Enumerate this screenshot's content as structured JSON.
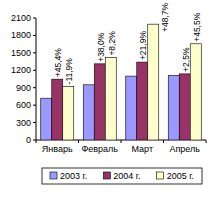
{
  "chart_data": {
    "type": "bar",
    "categories": [
      "Январь",
      "Февраль",
      "Март",
      "Апрель"
    ],
    "series": [
      {
        "name": "2003 г.",
        "color": "#9999ff",
        "values": [
          720,
          950,
          1100,
          1110
        ]
      },
      {
        "name": "2004 г.",
        "color": "#993366",
        "values": [
          1047,
          1311,
          1341,
          1138
        ],
        "annotations": [
          "+45,4%",
          "+38,0%",
          "+21,9%",
          "+2,5%"
        ]
      },
      {
        "name": "2005 г.",
        "color": "#ffffcc",
        "values": [
          922,
          1418,
          1994,
          1656
        ],
        "annotations": [
          "-11,9%",
          "+8,2%",
          "+48,7%",
          "+45,5%"
        ]
      }
    ],
    "ylim": [
      0,
      2100
    ],
    "yticks": [
      0,
      300,
      600,
      900,
      1200,
      1500,
      1800,
      2100
    ],
    "grid": false,
    "legend": "bottom"
  }
}
